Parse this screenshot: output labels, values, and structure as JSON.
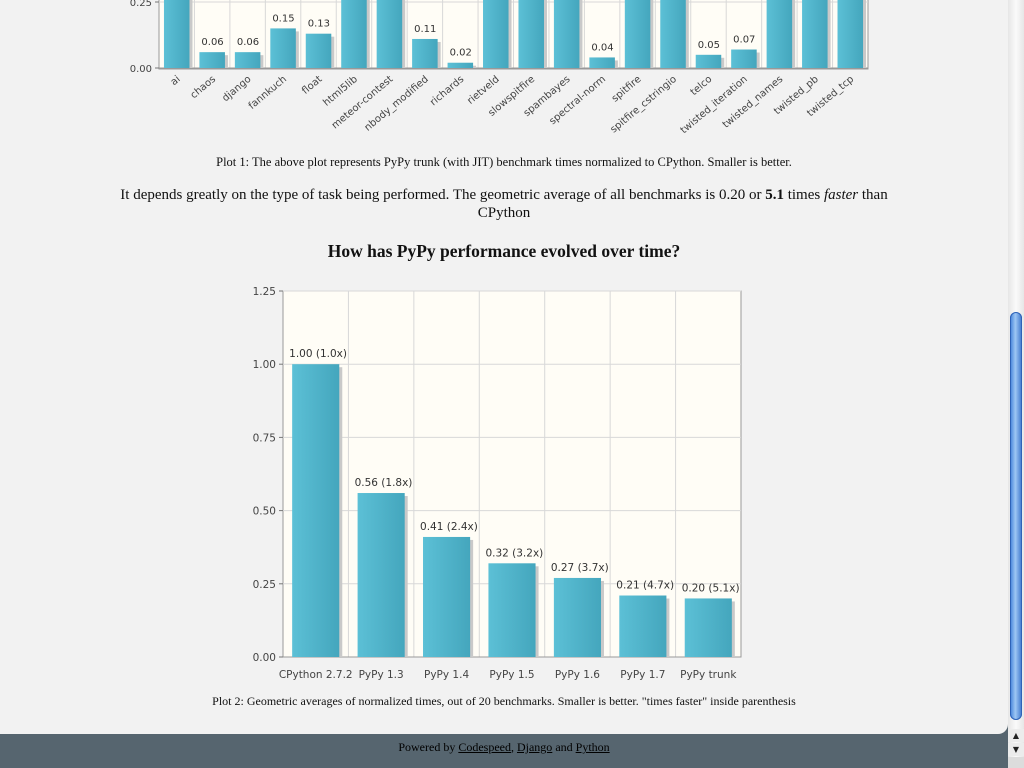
{
  "chart_data": [
    {
      "type": "bar",
      "categories": [
        "ai",
        "chaos",
        "django",
        "fannkuch",
        "float",
        "html5lib",
        "meteor-contest",
        "nbody_modified",
        "richards",
        "rietveld",
        "slowspitfire",
        "spambayes",
        "spectral-norm",
        "spitfire",
        "spitfire_cstringio",
        "telco",
        "twisted_iteration",
        "twisted_names",
        "twisted_pb",
        "twisted_tcp"
      ],
      "values": [
        null,
        0.06,
        0.06,
        0.15,
        0.13,
        null,
        null,
        0.11,
        0.02,
        null,
        null,
        null,
        0.04,
        null,
        null,
        0.05,
        0.07,
        null,
        null,
        null
      ],
      "value_labels": [
        "",
        "0.06",
        "0.06",
        "0.15",
        "0.13",
        "",
        "",
        "0.11",
        "0.02",
        "",
        "",
        "",
        "0.04",
        "",
        "",
        "0.05",
        "0.07",
        "",
        "",
        ""
      ],
      "y_ticks": [
        "0.25",
        "0.00"
      ],
      "y_visible_range": [
        0,
        0.25
      ],
      "grid": true,
      "bar_color": "#4bafc5",
      "caption": "Plot 1: The above plot represents PyPy trunk (with JIT) benchmark times normalized to CPython. Smaller is better."
    },
    {
      "type": "bar",
      "title": "How has PyPy performance evolved over time?",
      "categories": [
        "CPython 2.7.2",
        "PyPy 1.3",
        "PyPy 1.4",
        "PyPy 1.5",
        "PyPy 1.6",
        "PyPy 1.7",
        "PyPy trunk"
      ],
      "values": [
        1.0,
        0.56,
        0.41,
        0.32,
        0.27,
        0.21,
        0.2
      ],
      "value_labels": [
        "1.00 (1.0x)",
        "0.56 (1.8x)",
        "0.41 (2.4x)",
        "0.32 (3.2x)",
        "0.27 (3.7x)",
        "0.21 (4.7x)",
        "0.20 (5.1x)"
      ],
      "y_ticks": [
        "1.25",
        "1.00",
        "0.75",
        "0.50",
        "0.25",
        "0.00"
      ],
      "ylim": [
        0,
        1.25
      ],
      "grid": true,
      "bar_color": "#4bafc5",
      "caption": "Plot 2: Geometric averages of normalized times, out of 20 benchmarks. Smaller is better. \"times faster\" inside parenthesis"
    }
  ],
  "summary": {
    "text_1": "It depends greatly on the type of task being performed. The geometric average of all benchmarks is 0.20 or ",
    "bold": "5.1",
    "text_2": " times ",
    "italic": "faster",
    "text_3": " than CPython"
  },
  "footer": {
    "prefix": "Powered by ",
    "link_1": "Codespeed",
    "sep": ", ",
    "link_2": "Django",
    "and": " and ",
    "link_3": "Python"
  },
  "colors": {
    "bar": "#4bafc5",
    "footer_bg": "#56656f",
    "page_bg": "#f2f2f2",
    "scrollbar_thumb": "#4a8ae0"
  }
}
